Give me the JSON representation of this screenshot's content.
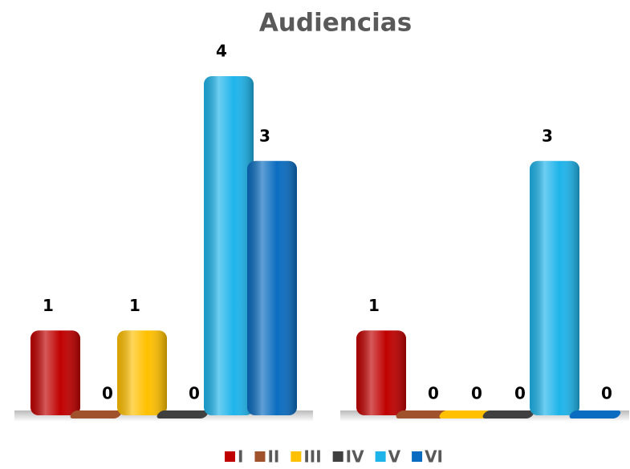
{
  "chart_data": {
    "type": "bar",
    "title": "Audiencias",
    "categories": [
      null,
      null
    ],
    "series": [
      {
        "name": "I",
        "color": "#c00000",
        "values": [
          1,
          1
        ]
      },
      {
        "name": "II",
        "color": "#a0522d",
        "values": [
          0,
          0
        ]
      },
      {
        "name": "III",
        "color": "#ffc000",
        "values": [
          1,
          0
        ]
      },
      {
        "name": "IV",
        "color": "#404040",
        "values": [
          0,
          0
        ]
      },
      {
        "name": "V",
        "color": "#1eb4ea",
        "values": [
          4,
          3
        ]
      },
      {
        "name": "VI",
        "color": "#0a6cc0",
        "values": [
          3,
          0
        ]
      }
    ],
    "legend": "bottom"
  }
}
